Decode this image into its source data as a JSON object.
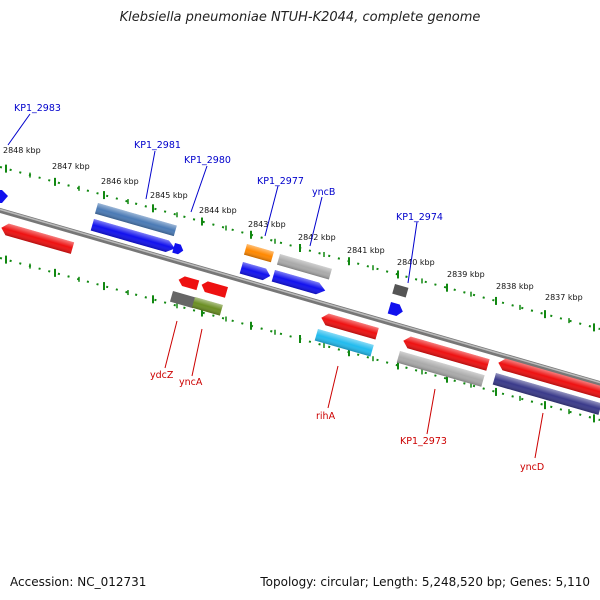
{
  "header": {
    "title": "Klebsiella pneumoniae NTUH-K2044, complete genome"
  },
  "footer": {
    "accession": "Accession: NC_012731",
    "topology": "Topology: circular; Length: 5,248,520 bp; Genes: 5,110"
  },
  "scale": {
    "tick_labels": [
      "2848 kbp",
      "2847 kbp",
      "2846 kbp",
      "2845 kbp",
      "2844 kbp",
      "2843 kbp",
      "2842 kbp",
      "2841 kbp",
      "2840 kbp",
      "2839 kbp",
      "2838 kbp",
      "2837 kbp"
    ]
  },
  "colors": {
    "red": "#ee1111",
    "blue": "#1111ee",
    "steel": "#4a7ab5",
    "gray": "#aaaaaa",
    "darkgray": "#555555",
    "olive": "#6b8e23",
    "orange": "#ff8800",
    "cyan": "#22bbee",
    "navy": "#3a3a8a",
    "backbone": "#888888",
    "ticks": "#118811",
    "label_top": "#0000cc",
    "label_bottom": "#cc0000"
  },
  "genes_top": [
    {
      "label": "KP1_2983"
    },
    {
      "label": "KP1_2981"
    },
    {
      "label": "KP1_2980"
    },
    {
      "label": "KP1_2977"
    },
    {
      "label": "yncB"
    },
    {
      "label": "KP1_2974"
    }
  ],
  "genes_bottom": [
    {
      "label": "ydcZ"
    },
    {
      "label": "yncA"
    },
    {
      "label": "rihA"
    },
    {
      "label": "KP1_2973"
    },
    {
      "label": "yncD"
    }
  ]
}
